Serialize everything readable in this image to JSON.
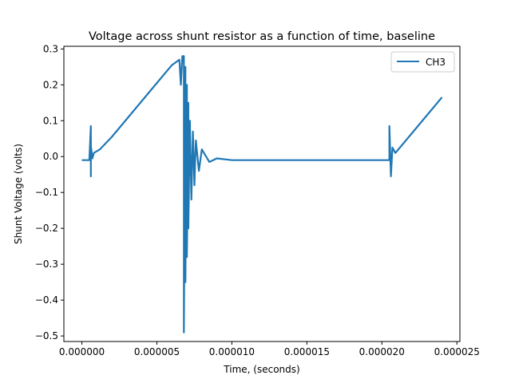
{
  "chart_data": {
    "type": "line",
    "title": "Voltage across shunt resistor as a function of time, baseline",
    "xlabel": "Time, (seconds)",
    "ylabel": "Shunt Voltage (volts)",
    "xlim": [
      -1.2e-06,
      2.52e-05
    ],
    "ylim": [
      -0.5154,
      0.3074
    ],
    "x_ticks": [
      0,
      5e-06,
      1e-05,
      1.5e-05,
      2e-05,
      2.5e-05
    ],
    "x_tick_labels": [
      "0.000000",
      "0.000005",
      "0.000010",
      "0.000015",
      "0.000020",
      "0.000025"
    ],
    "y_ticks": [
      -0.5,
      -0.4,
      -0.3,
      -0.2,
      -0.1,
      0.0,
      0.1,
      0.2,
      0.3
    ],
    "y_tick_labels": [
      "−0.5",
      "−0.4",
      "−0.3",
      "−0.2",
      "−0.1",
      "0.0",
      "0.1",
      "0.2",
      "0.3"
    ],
    "grid": false,
    "legend_position": "upper right",
    "series": [
      {
        "name": "CH3",
        "color": "#1f77b4",
        "x": [
          0.0,
          5e-07,
          6e-07,
          6e-07,
          6e-07,
          7e-07,
          8e-07,
          1.2e-06,
          2e-06,
          3e-06,
          4e-06,
          5e-06,
          6e-06,
          6.5e-06,
          6.6e-06,
          6.7e-06,
          6.8e-06,
          6.8e-06,
          6.9e-06,
          6.9e-06,
          7e-06,
          7e-06,
          7.1e-06,
          7.1e-06,
          7.2e-06,
          7.3e-06,
          7.4e-06,
          7.5e-06,
          7.6e-06,
          7.8e-06,
          8e-06,
          8.5e-06,
          9e-06,
          1e-05,
          1.2e-05,
          1.5e-05,
          1.8e-05,
          2.05e-05,
          2.05e-05,
          2.06e-05,
          2.07e-05,
          2.09e-05,
          2.2e-05,
          2.3e-05,
          2.4e-05
        ],
        "y": [
          -0.01,
          -0.01,
          0.085,
          -0.055,
          0.03,
          -0.005,
          0.01,
          0.02,
          0.055,
          0.105,
          0.155,
          0.205,
          0.255,
          0.27,
          0.2,
          0.28,
          0.28,
          -0.49,
          0.25,
          -0.35,
          0.2,
          -0.28,
          0.15,
          -0.2,
          0.1,
          -0.12,
          0.07,
          -0.08,
          0.045,
          -0.04,
          0.02,
          -0.015,
          -0.005,
          -0.01,
          -0.01,
          -0.01,
          -0.01,
          -0.01,
          0.085,
          -0.055,
          0.025,
          0.01,
          0.065,
          0.115,
          0.165
        ]
      }
    ]
  }
}
